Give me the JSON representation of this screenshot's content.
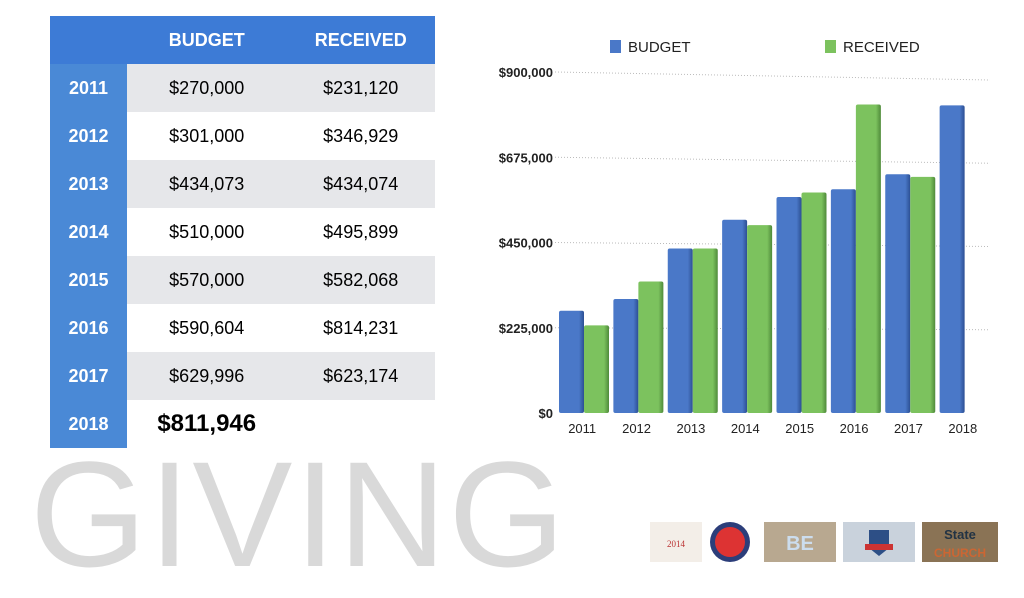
{
  "title": "GIVING",
  "table": {
    "headers": [
      "",
      "BUDGET",
      "RECEIVED"
    ],
    "rows": [
      {
        "year": "2011",
        "budget": "$270,000",
        "received": "$231,120"
      },
      {
        "year": "2012",
        "budget": "$301,000",
        "received": "$346,929"
      },
      {
        "year": "2013",
        "budget": "$434,073",
        "received": "$434,074"
      },
      {
        "year": "2014",
        "budget": "$510,000",
        "received": "$495,899"
      },
      {
        "year": "2015",
        "budget": "$570,000",
        "received": "$582,068"
      },
      {
        "year": "2016",
        "budget": "$590,604",
        "received": "$814,231"
      },
      {
        "year": "2017",
        "budget": "$629,996",
        "received": "$623,174"
      },
      {
        "year": "2018",
        "budget": "$811,946",
        "received": ""
      }
    ]
  },
  "chart_data": {
    "type": "bar",
    "categories": [
      "2011",
      "2012",
      "2013",
      "2014",
      "2015",
      "2016",
      "2017",
      "2018"
    ],
    "series": [
      {
        "name": "BUDGET",
        "color": "#4a78c8",
        "values": [
          270000,
          301000,
          434073,
          510000,
          570000,
          590604,
          629996,
          811946
        ]
      },
      {
        "name": "RECEIVED",
        "color": "#7cc25e",
        "values": [
          231120,
          346929,
          434074,
          495899,
          582068,
          814231,
          623174,
          null
        ]
      }
    ],
    "ylim": [
      0,
      900000
    ],
    "yticks": [
      "$0",
      "$225,000",
      "$450,000",
      "$675,000",
      "$900,000"
    ],
    "grid": true,
    "legend": "top",
    "style": "3d"
  },
  "logos": [
    "State of the Church 2014",
    "State of the Church 2015",
    "BE 2016",
    "State of the Church",
    "State of the Church"
  ]
}
